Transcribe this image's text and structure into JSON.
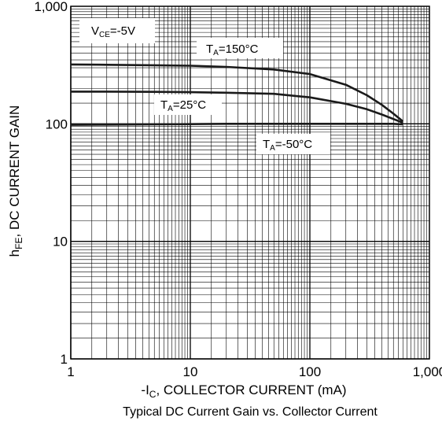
{
  "chart_data": {
    "type": "line",
    "title": "Typical DC Current Gain vs. Collector Current",
    "xlabel": {
      "prefix": "-I",
      "sub": "C",
      "rest": ", COLLECTOR CURRENT (mA)"
    },
    "ylabel": {
      "prefix": "h",
      "sub": "FE",
      "rest": ", DC CURRENT GAIN"
    },
    "x_scale": "log",
    "y_scale": "log",
    "xlim": [
      1,
      1000
    ],
    "ylim": [
      1,
      1000
    ],
    "x_ticks": [
      "1",
      "10",
      "100",
      "1,000"
    ],
    "y_ticks": [
      "1",
      "10",
      "100",
      "1,000"
    ],
    "grid": true,
    "condition": {
      "prefix": "V",
      "sub": "CE",
      "rest": "=-5V"
    },
    "series": [
      {
        "name": "T_A=150°C",
        "label": {
          "prefix": "T",
          "sub": "A",
          "rest": "=150°C"
        },
        "x": [
          1,
          2,
          5,
          10,
          20,
          50,
          100,
          200,
          300,
          400,
          500,
          600
        ],
        "y": [
          320,
          318,
          315,
          312,
          305,
          290,
          265,
          215,
          175,
          145,
          122,
          105
        ]
      },
      {
        "name": "T_A=25°C",
        "label": {
          "prefix": "T",
          "sub": "A",
          "rest": "=25°C"
        },
        "x": [
          1,
          2,
          5,
          10,
          20,
          50,
          100,
          200,
          300,
          400,
          500,
          600
        ],
        "y": [
          188,
          188,
          187,
          186,
          184,
          180,
          168,
          148,
          133,
          120,
          110,
          102
        ]
      },
      {
        "name": "T_A=-50°C",
        "label": {
          "prefix": "T",
          "sub": "A",
          "rest": "=-50°C"
        },
        "x": [
          1,
          2,
          5,
          10,
          20,
          50,
          100,
          200,
          300,
          400,
          500,
          600
        ],
        "y": [
          98,
          98.5,
          99,
          99.5,
          100,
          100,
          100,
          100,
          100,
          100,
          100,
          99
        ]
      }
    ]
  }
}
